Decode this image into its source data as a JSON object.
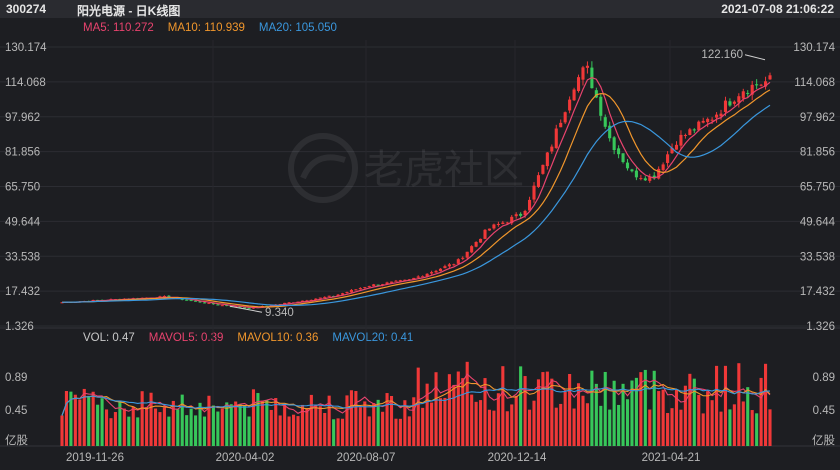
{
  "header": {
    "code": "300274",
    "name": "阳光电源 - 日K线图",
    "datetime": "2021-07-08 21:06:22"
  },
  "watermark": "老虎社区",
  "colors": {
    "up": "#f03838",
    "down": "#37c75a",
    "ma5": "#e8436e",
    "ma10": "#f0962c",
    "ma20": "#3a97dd",
    "vol_label": "#c8c8c8"
  },
  "price_panel": {
    "ma_legend": [
      {
        "label": "MA5:",
        "value": "110.272",
        "color": "#e8436e"
      },
      {
        "label": "MA10:",
        "value": "110.939",
        "color": "#f0962c"
      },
      {
        "label": "MA20:",
        "value": "105.050",
        "color": "#3a97dd"
      }
    ],
    "y_ticks": [
      "130.174",
      "114.068",
      "97.962",
      "81.856",
      "65.750",
      "49.644",
      "33.538",
      "17.432",
      "1.326"
    ],
    "max_marker": "122.160",
    "min_marker": "9.340"
  },
  "volume_panel": {
    "legend": [
      {
        "label": "VOL:",
        "value": "0.47",
        "color": "#c8c8c8"
      },
      {
        "label": "MAVOL5:",
        "value": "0.39",
        "color": "#e8436e"
      },
      {
        "label": "MAVOL10:",
        "value": "0.36",
        "color": "#f0962c"
      },
      {
        "label": "MAVOL20:",
        "value": "0.41",
        "color": "#3a97dd"
      }
    ],
    "y_ticks": [
      "0.89",
      "0.45"
    ],
    "unit": "亿股"
  },
  "x_ticks": [
    "2019-11-26",
    "2020-04-02",
    "2020-08-07",
    "2020-12-14",
    "2021-04-21"
  ],
  "chart_data": {
    "type": "candlestick",
    "title": "阳光电源 - 日K线图",
    "series_points": {
      "close": [
        [
          "2019-11-26",
          12.0
        ],
        [
          "2020-01-15",
          13.5
        ],
        [
          "2020-02-20",
          14.5
        ],
        [
          "2020-04-02",
          11.0
        ],
        [
          "2020-05-01",
          9.34
        ],
        [
          "2020-06-10",
          12.5
        ],
        [
          "2020-07-10",
          15.0
        ],
        [
          "2020-08-07",
          19.5
        ],
        [
          "2020-09-10",
          22.0
        ],
        [
          "2020-10-20",
          30.0
        ],
        [
          "2020-11-15",
          45.0
        ],
        [
          "2020-12-14",
          52.0
        ],
        [
          "2021-01-05",
          80.0
        ],
        [
          "2021-01-25",
          110.0
        ],
        [
          "2021-02-05",
          118.0
        ],
        [
          "2021-02-25",
          85.0
        ],
        [
          "2021-03-15",
          70.0
        ],
        [
          "2021-04-01",
          68.0
        ],
        [
          "2021-04-21",
          85.0
        ],
        [
          "2021-05-20",
          95.0
        ],
        [
          "2021-06-15",
          108.0
        ],
        [
          "2021-07-08",
          112.0
        ]
      ]
    },
    "price_range": [
      1.326,
      130.174
    ],
    "high_label": 122.16,
    "low_label": 9.34,
    "volume_range": [
      0,
      1.1
    ],
    "volume_unit": "亿股"
  }
}
